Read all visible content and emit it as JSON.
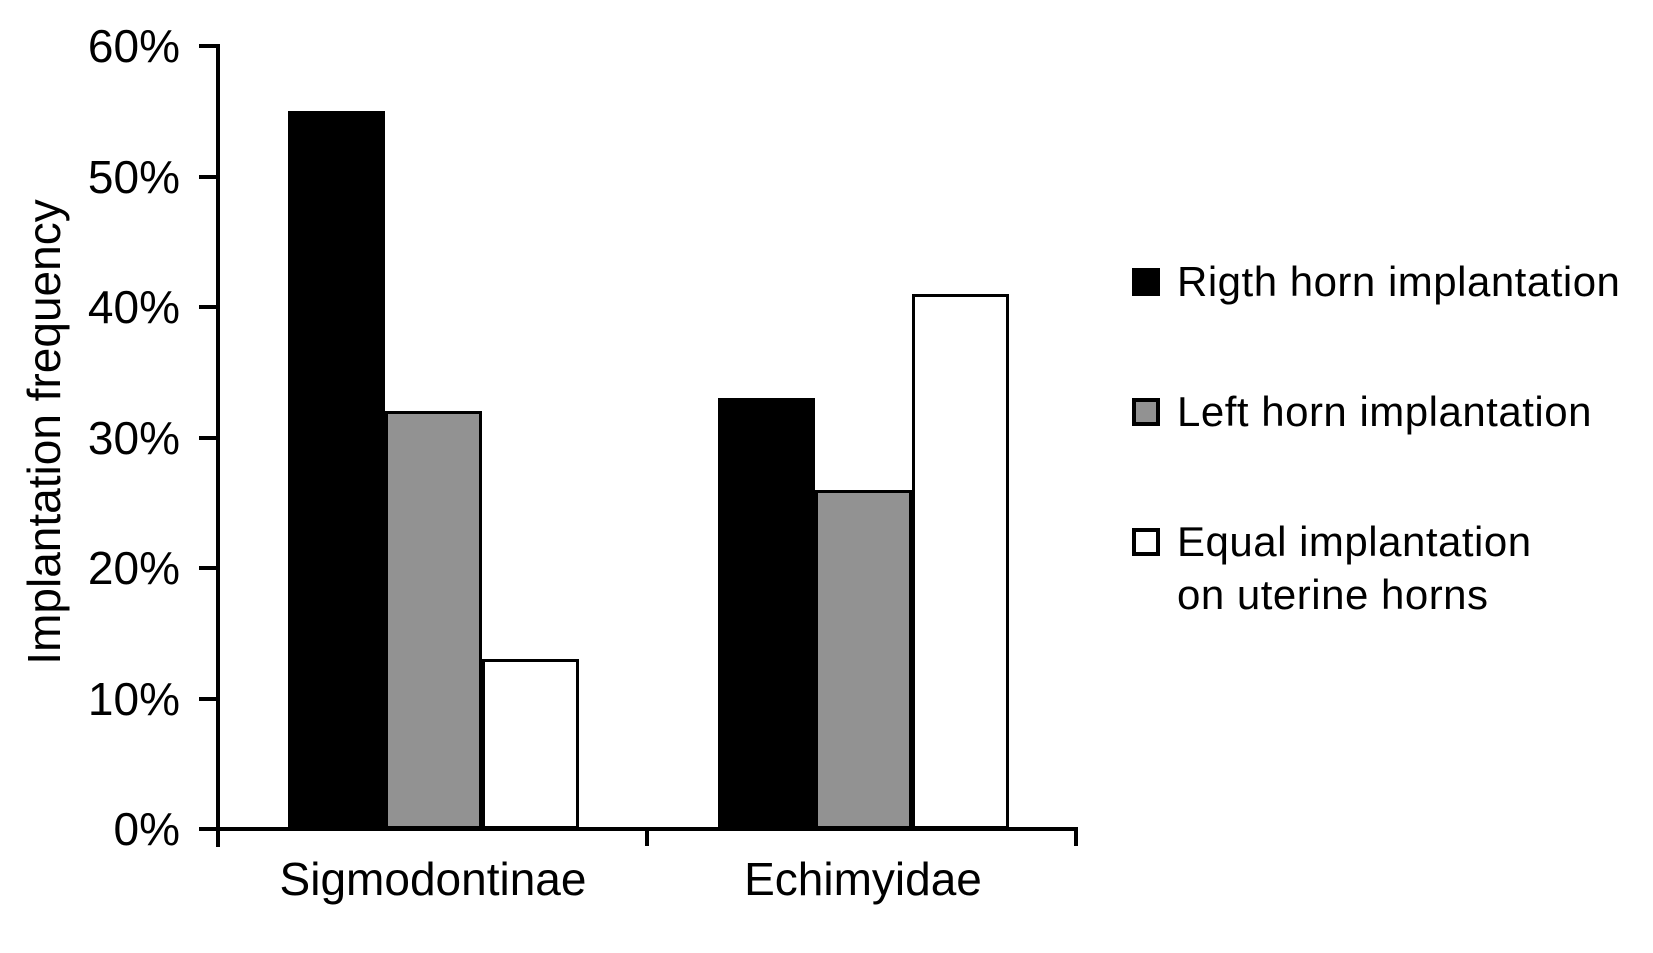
{
  "figure": {
    "background": "#ffffff",
    "text_color": "#000000"
  },
  "chart_data": {
    "type": "bar",
    "title": "",
    "ylabel": "Implantation frequency",
    "xlabel": "",
    "categories": [
      "Sigmodontinae",
      "Echimyidae"
    ],
    "series": [
      {
        "name": "Rigth horn implantation",
        "values": [
          55,
          33
        ],
        "fill": "#000000",
        "border": "#000000"
      },
      {
        "name": "Left horn implantation",
        "values": [
          32,
          26
        ],
        "fill": "#929292",
        "border": "#000000"
      },
      {
        "name": "Equal implantation on uterine horns",
        "values": [
          13,
          41
        ],
        "fill": "#ffffff",
        "border": "#000000"
      }
    ],
    "unit": "percent",
    "ylim": [
      0,
      60
    ],
    "ytick_step": 10,
    "ytick_labels": [
      "0%",
      "10%",
      "20%",
      "30%",
      "40%",
      "50%",
      "60%"
    ],
    "grid": false,
    "legend_position": "right",
    "legend_text_wrap_series_3": [
      "Equal implantation on",
      "uterine horns"
    ]
  }
}
